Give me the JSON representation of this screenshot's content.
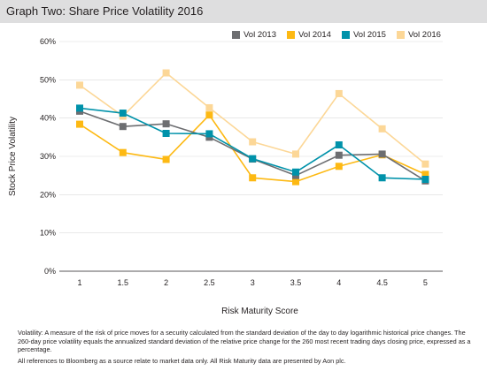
{
  "title": "Graph Two: Share Price Volatility 2016",
  "chart_data": {
    "type": "line",
    "xlabel": "Risk Maturity Score",
    "ylabel": "Stock Price Volatility",
    "x": [
      1,
      1.5,
      2,
      2.5,
      3,
      3.5,
      4,
      4.5,
      5
    ],
    "x_tick_labels": [
      "1",
      "1.5",
      "2",
      "2.5",
      "3",
      "3.5",
      "4",
      "4.5",
      "5"
    ],
    "ylim": [
      0,
      60
    ],
    "y_ticks": [
      0,
      10,
      20,
      30,
      40,
      50,
      60
    ],
    "y_tick_labels": [
      "0%",
      "10%",
      "20%",
      "30%",
      "40%",
      "50%",
      "60%"
    ],
    "grid": "horizontal",
    "legend": "top-right",
    "series": [
      {
        "name": "Vol 2013",
        "color": "#6d6e71",
        "values": [
          41.8,
          37.8,
          38.5,
          35.0,
          29.3,
          25.0,
          30.3,
          30.6,
          23.6
        ]
      },
      {
        "name": "Vol 2014",
        "color": "#fdb913",
        "values": [
          38.4,
          31.0,
          29.2,
          40.8,
          24.4,
          23.4,
          27.4,
          30.4,
          25.3
        ]
      },
      {
        "name": "Vol 2015",
        "color": "#0092aa",
        "values": [
          42.6,
          41.3,
          36.0,
          35.9,
          29.4,
          25.9,
          33.0,
          24.4,
          24.0
        ]
      },
      {
        "name": "Vol 2016",
        "color": "#fcd797",
        "values": [
          48.6,
          40.5,
          51.8,
          42.7,
          33.8,
          30.6,
          46.4,
          37.2,
          28.0
        ]
      }
    ]
  },
  "notes": {
    "volatility": "Volatility: A measure of the risk of price moves for a security calculated from the standard deviation of the day to day logarithmic historical price changes. The 260-day price volatility equals the annualized standard deviation of the relative price change for the 260 most recent trading days closing price, expressed as a percentage.",
    "references": "All references to Bloomberg as a source relate to market data only. All Risk Maturity data are presented by Aon plc."
  }
}
